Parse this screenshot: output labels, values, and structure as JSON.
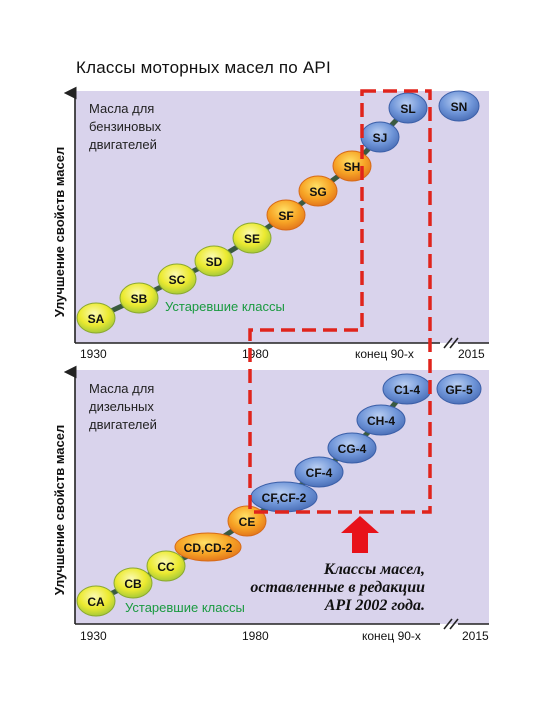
{
  "title": "Классы моторных масел по API",
  "y_axis_label": "Улучшение свойств масел",
  "panels": [
    {
      "id": "gasoline",
      "description_lines": [
        "Масла для",
        "бензиновых",
        "двигателей"
      ],
      "obsolete_label": "Устаревшие классы",
      "ticks": [
        "1930",
        "1980",
        "конец 90-х",
        "2015"
      ],
      "classes": [
        {
          "label": "SA",
          "color": "yellow"
        },
        {
          "label": "SB",
          "color": "yellow"
        },
        {
          "label": "SC",
          "color": "yellow"
        },
        {
          "label": "SD",
          "color": "yellow"
        },
        {
          "label": "SE",
          "color": "yellow"
        },
        {
          "label": "SF",
          "color": "orange"
        },
        {
          "label": "SG",
          "color": "orange"
        },
        {
          "label": "SH",
          "color": "orange"
        },
        {
          "label": "SJ",
          "color": "blue"
        },
        {
          "label": "SL",
          "color": "blue"
        },
        {
          "label": "SN",
          "color": "blue"
        }
      ]
    },
    {
      "id": "diesel",
      "description_lines": [
        "Масла для",
        "дизельных",
        "двигателей"
      ],
      "obsolete_label": "Устаревшие классы",
      "ticks": [
        "1930",
        "1980",
        "конец 90-х",
        "2015"
      ],
      "classes": [
        {
          "label": "CA",
          "color": "yellow"
        },
        {
          "label": "CB",
          "color": "yellow"
        },
        {
          "label": "CC",
          "color": "yellow"
        },
        {
          "label": "CD,CD-2",
          "color": "orange"
        },
        {
          "label": "CE",
          "color": "orange"
        },
        {
          "label": "CF,CF-2",
          "color": "blue"
        },
        {
          "label": "CF-4",
          "color": "blue"
        },
        {
          "label": "CG-4",
          "color": "blue"
        },
        {
          "label": "CH-4",
          "color": "blue"
        },
        {
          "label": "C1-4",
          "color": "blue"
        },
        {
          "label": "GF-5",
          "color": "blue"
        }
      ]
    }
  ],
  "note_lines": [
    "Классы масел,",
    "оставленные в редакции",
    "API 2002 года."
  ],
  "colors": {
    "panel_bg": "#d9d3ec",
    "dashed_border": "#e0241c",
    "arrow": "#e8121a",
    "obsolete_text": "#1a9a40",
    "blue_fill": "#6f95d8",
    "blue_edge": "#3b5fa8",
    "yellow_fill": "#f2ee3a",
    "orange_fill": "#f29a1e",
    "connector": "#3a5a40"
  }
}
